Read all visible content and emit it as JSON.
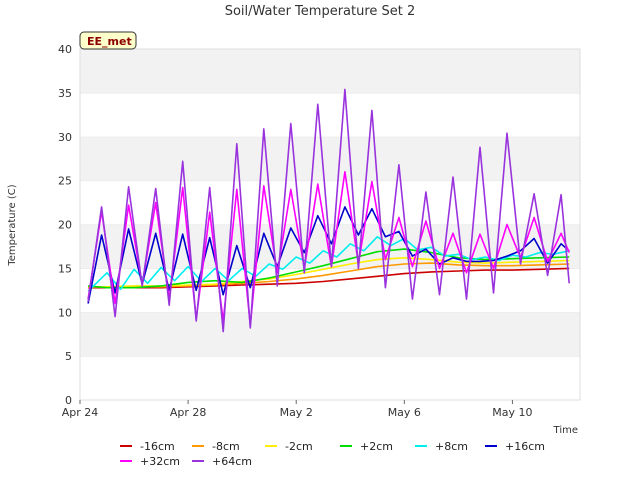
{
  "chart_data": {
    "type": "line",
    "title": "Soil/Water Temperature Set 2",
    "xlabel": "Time",
    "ylabel": "Temperature (C)",
    "badge": "EE_met",
    "ylim": [
      0,
      40
    ],
    "yticks": [
      0,
      5,
      10,
      15,
      20,
      25,
      30,
      35,
      40
    ],
    "xlim": [
      0,
      18.5
    ],
    "xticks": [
      {
        "value": 0,
        "label": "Apr 24"
      },
      {
        "value": 4,
        "label": "Apr 28"
      },
      {
        "value": 8,
        "label": "May 2"
      },
      {
        "value": 12,
        "label": "May 6"
      },
      {
        "value": 16,
        "label": "May 10"
      }
    ],
    "x_units": "days since Apr 24",
    "grid": "horizontal bands",
    "legend_position": "bottom",
    "series": [
      {
        "name": "-16cm",
        "color": "#cc0000",
        "x": [
          0.3,
          1,
          2,
          3,
          4,
          5,
          6,
          7,
          8,
          9,
          10,
          11,
          12,
          13,
          14,
          15,
          16,
          17,
          18.1
        ],
        "y": [
          12.8,
          12.8,
          12.8,
          12.8,
          12.9,
          13.0,
          13.1,
          13.2,
          13.3,
          13.5,
          13.8,
          14.1,
          14.4,
          14.6,
          14.7,
          14.8,
          14.8,
          14.9,
          15.0
        ]
      },
      {
        "name": "-8cm",
        "color": "#ff9900",
        "x": [
          0.3,
          1,
          2,
          3,
          4,
          5,
          6,
          7,
          8,
          9,
          10,
          11,
          12,
          13,
          14,
          15,
          16,
          17,
          18.1
        ],
        "y": [
          12.9,
          12.9,
          12.9,
          12.9,
          13.0,
          13.1,
          13.3,
          13.5,
          13.8,
          14.2,
          14.7,
          15.2,
          15.5,
          15.6,
          15.4,
          15.3,
          15.3,
          15.4,
          15.5
        ]
      },
      {
        "name": "-2cm",
        "color": "#ffee00",
        "x": [
          0.3,
          1,
          2,
          3,
          4,
          5,
          6,
          7,
          8,
          9,
          10,
          11,
          12,
          13,
          14,
          15,
          16,
          17,
          18.1
        ],
        "y": [
          12.9,
          12.9,
          13.0,
          13.0,
          13.1,
          13.2,
          13.5,
          13.8,
          14.3,
          14.9,
          15.5,
          16.0,
          16.2,
          16.0,
          15.7,
          15.6,
          15.7,
          15.8,
          15.9
        ]
      },
      {
        "name": "+2cm",
        "color": "#00dd00",
        "x": [
          0.3,
          1,
          2,
          3,
          4,
          5,
          6,
          7,
          8,
          9,
          10,
          11,
          12,
          13,
          14,
          15,
          16,
          17,
          18.1
        ],
        "y": [
          13.0,
          12.8,
          12.8,
          13.0,
          13.4,
          13.6,
          13.4,
          13.9,
          14.6,
          15.3,
          16.1,
          16.9,
          17.2,
          16.8,
          16.2,
          16.0,
          16.1,
          16.2,
          16.3
        ]
      },
      {
        "name": "+8cm",
        "color": "#00eeee",
        "x": [
          0.3,
          1,
          1.5,
          2,
          2.5,
          3,
          3.5,
          4,
          4.5,
          5,
          5.5,
          6,
          6.5,
          7,
          7.5,
          8,
          8.5,
          9,
          9.5,
          10,
          10.5,
          11,
          11.5,
          12,
          12.5,
          13,
          13.5,
          14,
          14.5,
          15,
          15.5,
          16,
          16.5,
          17,
          17.5,
          18.1
        ],
        "y": [
          12.4,
          14.5,
          12.6,
          14.9,
          13.3,
          15.1,
          13.6,
          15.2,
          13.5,
          15.0,
          13.6,
          15.0,
          14.1,
          15.5,
          14.9,
          16.3,
          15.6,
          17.0,
          16.3,
          17.8,
          17.0,
          18.6,
          17.6,
          18.4,
          17.1,
          17.4,
          16.4,
          16.6,
          16.0,
          16.3,
          15.9,
          16.5,
          16.3,
          16.8,
          16.6,
          17.0
        ]
      },
      {
        "name": "+16cm",
        "color": "#0000cc",
        "x": [
          0.3,
          0.8,
          1.3,
          1.8,
          2.3,
          2.8,
          3.3,
          3.8,
          4.3,
          4.8,
          5.3,
          5.8,
          6.3,
          6.8,
          7.3,
          7.8,
          8.3,
          8.8,
          9.3,
          9.8,
          10.3,
          10.8,
          11.3,
          11.8,
          12.3,
          12.8,
          13.3,
          13.8,
          14.3,
          14.8,
          15.3,
          15.8,
          16.3,
          16.8,
          17.3,
          17.8,
          18.1
        ],
        "y": [
          11.0,
          18.8,
          12.2,
          19.5,
          13.2,
          19.0,
          12.5,
          18.9,
          12.5,
          18.5,
          12.0,
          17.6,
          12.8,
          19.0,
          15.2,
          19.6,
          16.8,
          21.0,
          17.8,
          22.0,
          18.8,
          21.8,
          18.6,
          19.2,
          16.4,
          17.2,
          15.5,
          16.2,
          15.8,
          15.8,
          15.9,
          16.4,
          17.0,
          18.4,
          15.6,
          17.8,
          17.0
        ]
      },
      {
        "name": "+32cm",
        "color": "#ff00ff",
        "x": [
          0.3,
          0.8,
          1.3,
          1.8,
          2.3,
          2.8,
          3.3,
          3.8,
          4.3,
          4.8,
          5.3,
          5.8,
          6.3,
          6.8,
          7.3,
          7.8,
          8.3,
          8.8,
          9.3,
          9.8,
          10.3,
          10.8,
          11.3,
          11.8,
          12.3,
          12.8,
          13.3,
          13.8,
          14.3,
          14.8,
          15.3,
          15.8,
          16.3,
          16.8,
          17.3,
          17.8,
          18.1
        ],
        "y": [
          11.5,
          21.5,
          11.0,
          22.2,
          13.2,
          22.5,
          11.5,
          24.2,
          9.2,
          21.4,
          9.0,
          24.0,
          8.5,
          24.4,
          14.5,
          24.0,
          15.0,
          24.6,
          15.2,
          26.0,
          15.5,
          24.9,
          16.0,
          20.8,
          15.2,
          20.4,
          15.0,
          19.0,
          14.5,
          18.9,
          15.0,
          20.0,
          16.2,
          20.8,
          15.8,
          19.0,
          16.8
        ]
      },
      {
        "name": "+64cm",
        "color": "#9933dd",
        "x": [
          0.3,
          0.8,
          1.3,
          1.8,
          2.3,
          2.8,
          3.3,
          3.8,
          4.3,
          4.8,
          5.3,
          5.8,
          6.3,
          6.8,
          7.3,
          7.8,
          8.3,
          8.8,
          9.3,
          9.8,
          10.3,
          10.8,
          11.3,
          11.8,
          12.3,
          12.8,
          13.3,
          13.8,
          14.3,
          14.8,
          15.3,
          15.8,
          16.3,
          16.8,
          17.3,
          17.8,
          18.1
        ],
        "y": [
          11.2,
          22.0,
          9.5,
          24.3,
          13.0,
          24.1,
          10.8,
          27.2,
          9.0,
          24.2,
          7.8,
          29.2,
          8.2,
          30.9,
          13.0,
          31.5,
          14.5,
          33.7,
          15.2,
          35.4,
          15.0,
          33.0,
          12.8,
          26.8,
          11.5,
          23.7,
          12.0,
          25.4,
          11.5,
          28.8,
          12.2,
          30.4,
          15.5,
          23.5,
          14.2,
          23.4,
          13.3
        ]
      }
    ]
  }
}
